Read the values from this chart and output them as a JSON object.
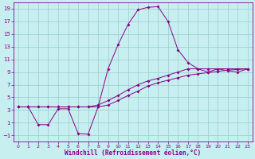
{
  "background_color": "#c8eff0",
  "line_color": "#880088",
  "grid_color": "#99cccc",
  "xlabel": "Windchill (Refroidissement éolien,°C)",
  "ylim": [
    -2,
    20
  ],
  "xlim": [
    -0.5,
    23.5
  ],
  "yticks": [
    -1,
    1,
    3,
    5,
    7,
    9,
    11,
    13,
    15,
    17,
    19
  ],
  "xticks": [
    0,
    1,
    2,
    3,
    4,
    5,
    6,
    7,
    8,
    9,
    10,
    11,
    12,
    13,
    14,
    15,
    16,
    17,
    18,
    19,
    20,
    21,
    22,
    23
  ],
  "line1_x": [
    0,
    1,
    2,
    3,
    4,
    5,
    6,
    7,
    8,
    9,
    10,
    11,
    12,
    13,
    14,
    15,
    16,
    17,
    18,
    19,
    20,
    21,
    22,
    23
  ],
  "line1_y": [
    3.5,
    3.5,
    0.7,
    0.7,
    3.2,
    3.2,
    -0.7,
    -0.8,
    3.5,
    9.5,
    13.3,
    16.5,
    18.8,
    19.2,
    19.3,
    17.0,
    12.5,
    10.5,
    9.5,
    9.0,
    9.5,
    9.2,
    9.0,
    9.5
  ],
  "line2_x": [
    0,
    1,
    2,
    3,
    4,
    5,
    6,
    7,
    8,
    9,
    10,
    11,
    12,
    13,
    14,
    15,
    16,
    17,
    18,
    19,
    20,
    21,
    22,
    23
  ],
  "line2_y": [
    3.5,
    3.5,
    3.5,
    3.5,
    3.5,
    3.5,
    3.5,
    3.5,
    3.8,
    4.5,
    5.3,
    6.2,
    7.0,
    7.6,
    8.0,
    8.5,
    9.0,
    9.5,
    9.5,
    9.5,
    9.5,
    9.5,
    9.5,
    9.5
  ],
  "line3_x": [
    0,
    1,
    2,
    3,
    4,
    5,
    6,
    7,
    8,
    9,
    10,
    11,
    12,
    13,
    14,
    15,
    16,
    17,
    18,
    19,
    20,
    21,
    22,
    23
  ],
  "line3_y": [
    3.5,
    3.5,
    3.5,
    3.5,
    3.5,
    3.5,
    3.5,
    3.5,
    3.5,
    3.8,
    4.5,
    5.3,
    6.0,
    6.8,
    7.3,
    7.7,
    8.1,
    8.5,
    8.7,
    8.9,
    9.1,
    9.3,
    9.4,
    9.5
  ]
}
